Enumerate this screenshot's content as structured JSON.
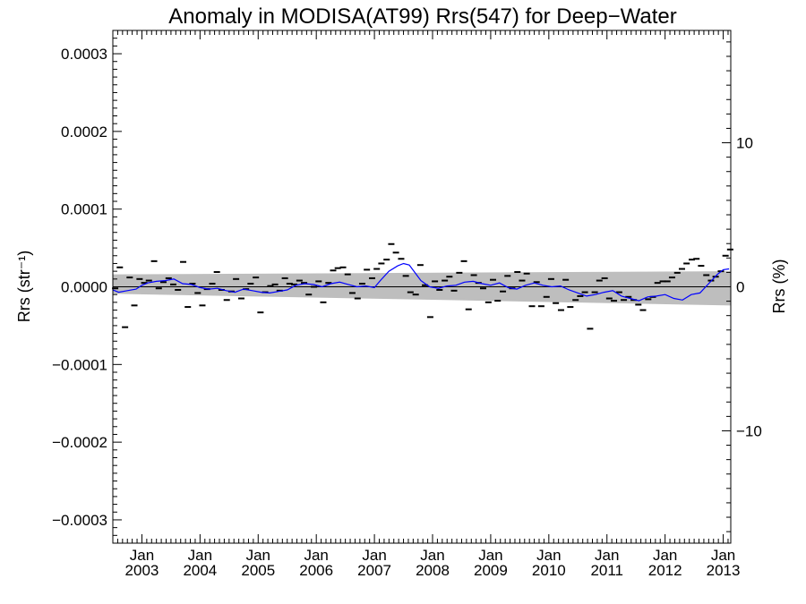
{
  "chart_data": {
    "type": "scatter",
    "title": "Anomaly in MODISA(AT99) Rrs(547) for Deep−Water",
    "ylabel": "Rrs (str⁻¹)",
    "ylabel_right": "Rrs (%)",
    "xlim": [
      2002.5,
      2013.13
    ],
    "ylim": [
      -0.00033,
      0.00033
    ],
    "ylim_right": [
      -17.8,
      17.8
    ],
    "x_ticks": [
      {
        "value": 2003.0,
        "month": "Jan",
        "year": "2003"
      },
      {
        "value": 2004.0,
        "month": "Jan",
        "year": "2004"
      },
      {
        "value": 2005.0,
        "month": "Jan",
        "year": "2005"
      },
      {
        "value": 2006.0,
        "month": "Jan",
        "year": "2006"
      },
      {
        "value": 2007.0,
        "month": "Jan",
        "year": "2007"
      },
      {
        "value": 2008.0,
        "month": "Jan",
        "year": "2008"
      },
      {
        "value": 2009.0,
        "month": "Jan",
        "year": "2009"
      },
      {
        "value": 2010.0,
        "month": "Jan",
        "year": "2010"
      },
      {
        "value": 2011.0,
        "month": "Jan",
        "year": "2011"
      },
      {
        "value": 2012.0,
        "month": "Jan",
        "year": "2012"
      },
      {
        "value": 2013.0,
        "month": "Jan",
        "year": "2013"
      }
    ],
    "y_ticks": [
      {
        "value": 0.0003,
        "label": "0.0003"
      },
      {
        "value": 0.0002,
        "label": "0.0002"
      },
      {
        "value": 0.0001,
        "label": "0.0001"
      },
      {
        "value": 0.0,
        "label": "0.0000"
      },
      {
        "value": -0.0001,
        "label": "−0.0001"
      },
      {
        "value": -0.0002,
        "label": "−0.0002"
      },
      {
        "value": -0.0003,
        "label": "−0.0003"
      }
    ],
    "y_ticks_right": [
      {
        "value": 10,
        "label": "10"
      },
      {
        "value": 0,
        "label": "0"
      },
      {
        "value": -10,
        "label": "−10"
      }
    ],
    "uncertainty_band": {
      "x": [
        2002.5,
        2013.13
      ],
      "upper": [
        1.6e-05,
        2e-05
      ],
      "lower": [
        -9e-06,
        -2.4e-05
      ]
    },
    "zero_line": 0.0,
    "monthly_anomaly": {
      "x": [
        2002.54,
        2002.62,
        2002.71,
        2002.79,
        2002.87,
        2002.96,
        2003.04,
        2003.12,
        2003.21,
        2003.29,
        2003.37,
        2003.46,
        2003.54,
        2003.62,
        2003.71,
        2003.79,
        2003.87,
        2003.96,
        2004.04,
        2004.12,
        2004.21,
        2004.29,
        2004.37,
        2004.46,
        2004.54,
        2004.62,
        2004.71,
        2004.79,
        2004.87,
        2004.96,
        2005.04,
        2005.12,
        2005.21,
        2005.29,
        2005.37,
        2005.46,
        2005.54,
        2005.62,
        2005.71,
        2005.79,
        2005.87,
        2005.96,
        2006.04,
        2006.12,
        2006.21,
        2006.29,
        2006.37,
        2006.46,
        2006.54,
        2006.62,
        2006.71,
        2006.79,
        2006.87,
        2006.96,
        2007.04,
        2007.12,
        2007.21,
        2007.29,
        2007.37,
        2007.46,
        2007.54,
        2007.62,
        2007.71,
        2007.79,
        2007.87,
        2007.96,
        2008.04,
        2008.12,
        2008.21,
        2008.29,
        2008.37,
        2008.46,
        2008.54,
        2008.62,
        2008.71,
        2008.79,
        2008.87,
        2008.96,
        2009.04,
        2009.12,
        2009.21,
        2009.29,
        2009.37,
        2009.46,
        2009.54,
        2009.62,
        2009.71,
        2009.79,
        2009.87,
        2009.96,
        2010.04,
        2010.12,
        2010.21,
        2010.29,
        2010.37,
        2010.46,
        2010.54,
        2010.62,
        2010.71,
        2010.79,
        2010.87,
        2010.96,
        2011.04,
        2011.12,
        2011.21,
        2011.29,
        2011.37,
        2011.46,
        2011.54,
        2011.62,
        2011.71,
        2011.79,
        2011.87,
        2011.96,
        2012.04,
        2012.12,
        2012.21,
        2012.29,
        2012.37,
        2012.46,
        2012.54,
        2012.62,
        2012.71,
        2012.79,
        2012.87,
        2012.96,
        2013.04,
        2013.12
      ],
      "y": [
        -2e-06,
        2.5e-05,
        -5.2e-05,
        1.2e-05,
        -2.4e-05,
        1e-05,
        5e-06,
        8e-06,
        3.3e-05,
        -2e-06,
        6e-06,
        1.1e-05,
        3e-06,
        -4e-06,
        3.2e-05,
        -2.6e-05,
        4e-06,
        -8e-06,
        -2.4e-05,
        -3e-06,
        4e-06,
        1.9e-05,
        -4e-06,
        -1.7e-05,
        -6e-06,
        1e-05,
        -1.5e-05,
        -3e-06,
        4e-06,
        1.2e-05,
        -3.3e-05,
        -7e-06,
        1e-06,
        3e-06,
        -5e-06,
        1.1e-05,
        4e-06,
        3e-06,
        8e-06,
        5e-06,
        -1e-05,
        0.0,
        7e-06,
        -2e-05,
        5e-06,
        2.1e-05,
        2.4e-05,
        2.5e-05,
        1.6e-05,
        -8e-06,
        -1.5e-05,
        4e-06,
        2.2e-05,
        1.1e-05,
        2.3e-05,
        3e-05,
        3.5e-05,
        5.5e-05,
        4.4e-05,
        3.6e-05,
        1.4e-05,
        -7e-06,
        -1e-05,
        2.8e-05,
        2e-06,
        -3.9e-05,
        7e-06,
        -4e-06,
        8e-06,
        1.3e-05,
        -5e-06,
        1.8e-05,
        3.3e-05,
        -2.9e-05,
        1.5e-05,
        5e-06,
        -2e-06,
        -2e-05,
        9e-06,
        -1.8e-05,
        -6e-06,
        1.4e-05,
        -2e-06,
        1.9e-05,
        8e-06,
        1.7e-05,
        -2.5e-05,
        6e-06,
        -2.5e-05,
        -1.3e-05,
        1e-05,
        -2.1e-05,
        -3e-05,
        9e-06,
        -2.6e-05,
        -1.7e-05,
        -1.2e-05,
        -7e-06,
        -5.4e-05,
        -7e-06,
        8e-06,
        1.1e-05,
        -1.5e-05,
        -1.8e-05,
        -7e-06,
        -1.7e-05,
        -1.3e-05,
        -1.7e-05,
        -2.3e-05,
        -3e-05,
        -1.6e-05,
        -1.3e-05,
        5e-06,
        7e-06,
        7e-06,
        1.2e-05,
        1.8e-05,
        2.3e-05,
        3e-05,
        3.5e-05,
        3.6e-05,
        2.7e-05,
        1.5e-05,
        8e-06,
        1.3e-05,
        2e-05,
        4e-05,
        4.8e-05
      ]
    },
    "running_mean": {
      "x": [
        2002.5,
        2002.6,
        2002.75,
        2002.9,
        2003.0,
        2003.1,
        2003.25,
        2003.4,
        2003.55,
        2003.7,
        2003.85,
        2004.0,
        2004.15,
        2004.3,
        2004.45,
        2004.6,
        2004.75,
        2004.9,
        2005.05,
        2005.2,
        2005.35,
        2005.5,
        2005.65,
        2005.8,
        2005.95,
        2006.1,
        2006.25,
        2006.4,
        2006.55,
        2006.7,
        2006.85,
        2007.0,
        2007.1,
        2007.25,
        2007.4,
        2007.5,
        2007.6,
        2007.7,
        2007.8,
        2007.95,
        2008.1,
        2008.25,
        2008.4,
        2008.55,
        2008.7,
        2008.85,
        2009.0,
        2009.15,
        2009.3,
        2009.45,
        2009.6,
        2009.75,
        2009.9,
        2010.05,
        2010.2,
        2010.35,
        2010.5,
        2010.65,
        2010.8,
        2010.95,
        2011.1,
        2011.25,
        2011.4,
        2011.55,
        2011.7,
        2011.85,
        2012.0,
        2012.15,
        2012.3,
        2012.45,
        2012.6,
        2012.75,
        2012.9,
        2013.0,
        2013.1
      ],
      "y": [
        -4e-06,
        -7e-06,
        -5e-06,
        -3e-06,
        2e-06,
        5e-06,
        7e-06,
        8e-06,
        1e-05,
        4e-06,
        3e-06,
        -1e-06,
        -3e-06,
        -2e-06,
        -5e-06,
        -7e-06,
        -3e-06,
        -5e-06,
        -7e-06,
        -8e-06,
        -6e-06,
        -4e-06,
        2e-06,
        4e-06,
        3e-06,
        0.0,
        4e-06,
        6e-06,
        3e-06,
        0.0,
        1e-06,
        -1e-06,
        8e-06,
        2e-05,
        2.7e-05,
        3e-05,
        2.8e-05,
        1.8e-05,
        8e-06,
        0.0,
        -2e-06,
        1e-06,
        2e-06,
        6e-06,
        7e-06,
        4e-06,
        2e-06,
        5e-06,
        -1e-06,
        -3e-06,
        2e-06,
        5e-06,
        2e-06,
        0.0,
        1e-06,
        -4e-06,
        -8e-06,
        -1.2e-05,
        -1e-05,
        -7e-06,
        -5e-06,
        -1.2e-05,
        -1.5e-05,
        -1.8e-05,
        -1.3e-05,
        -1.2e-05,
        -1e-05,
        -1.5e-05,
        -1.7e-05,
        -1e-05,
        -8e-06,
        4e-06,
        1.6e-05,
        2.2e-05,
        2.3e-05
      ]
    },
    "colors": {
      "band": "#bebebe",
      "running_mean": "#0000ff",
      "markers": "#000000",
      "zero_line": "#000000"
    },
    "grid": false,
    "legend": "none"
  }
}
